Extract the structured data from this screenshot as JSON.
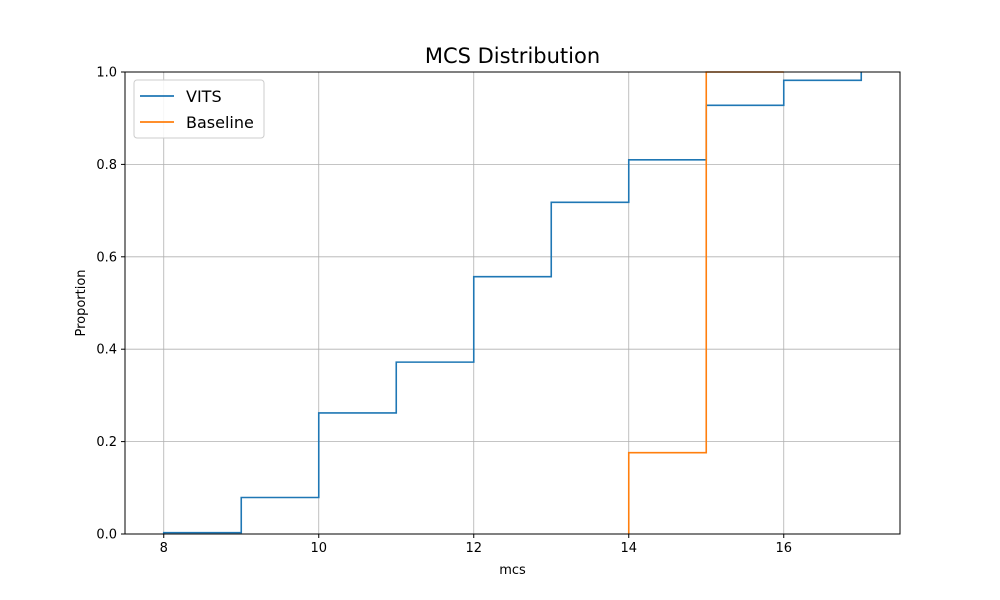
{
  "chart_data": {
    "type": "line",
    "title": "MCS Distribution",
    "xlabel": "mcs",
    "ylabel": "Proportion",
    "xlim": [
      7.5,
      17.5
    ],
    "ylim": [
      0,
      1
    ],
    "xticks": [
      8,
      10,
      12,
      14,
      16
    ],
    "yticks": [
      0.0,
      0.2,
      0.4,
      0.6,
      0.8,
      1.0
    ],
    "xtick_labels": [
      "8",
      "10",
      "12",
      "14",
      "16"
    ],
    "ytick_labels": [
      "0.0",
      "0.2",
      "0.4",
      "0.6",
      "0.8",
      "1.0"
    ],
    "grid": true,
    "legend_position": "top-left",
    "step": "post",
    "series": [
      {
        "name": "VITS",
        "color": "#1f77b4",
        "x": [
          8,
          9,
          10,
          11,
          12,
          13,
          14,
          15,
          16,
          17
        ],
        "y": [
          0.003,
          0.079,
          0.262,
          0.372,
          0.557,
          0.718,
          0.81,
          0.928,
          0.982,
          1.0
        ]
      },
      {
        "name": "Baseline",
        "color": "#ff7f0e",
        "x": [
          14,
          15,
          16
        ],
        "y": [
          0.176,
          1.0,
          1.0
        ]
      }
    ]
  }
}
